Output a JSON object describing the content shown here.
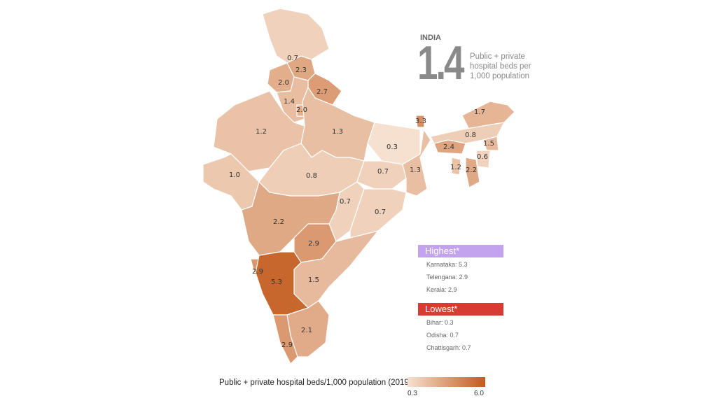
{
  "header": {
    "country": "INDIA",
    "value": "1.4",
    "description": "Public + private hospital beds per 1,000 population"
  },
  "map": {
    "values": [
      0.7,
      2.3,
      2.0,
      2.7,
      1.4,
      2.0,
      1.2,
      1.3,
      0.3,
      1.0,
      0.8,
      0.7,
      1.3,
      0.7,
      0.7,
      2.2,
      2.9,
      1.5,
      2.9,
      5.3,
      2.1,
      2.9,
      3.3,
      1.7,
      0.8,
      1.5,
      2.4,
      0.6,
      1.2,
      2.2
    ],
    "color_low": "#f6e1d1",
    "color_high": "#c25a1c",
    "border_color": "#ffffff"
  },
  "highest": {
    "label": "Highest*",
    "color": "#c3a3ee",
    "items": [
      "Karnataka: 5.3",
      "Telengana: 2.9",
      "Kerala: 2.9"
    ]
  },
  "lowest": {
    "label": "Lowest*",
    "color": "#d63c2f",
    "items": [
      "Bihar: 0.3",
      "Odisha: 0.7",
      "Chattisgarh: 0.7"
    ]
  },
  "legend": {
    "title": "Public + private hospital beds/1,000 population (2019)",
    "min": "0.3",
    "max": "6.0",
    "min_value": 0.3,
    "max_value": 6.0
  }
}
